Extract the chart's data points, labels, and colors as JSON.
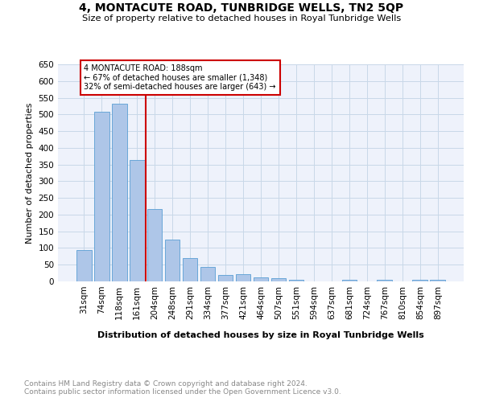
{
  "title": "4, MONTACUTE ROAD, TUNBRIDGE WELLS, TN2 5QP",
  "subtitle": "Size of property relative to detached houses in Royal Tunbridge Wells",
  "xlabel": "Distribution of detached houses by size in Royal Tunbridge Wells",
  "ylabel": "Number of detached properties",
  "footnote1": "Contains HM Land Registry data © Crown copyright and database right 2024.",
  "footnote2": "Contains public sector information licensed under the Open Government Licence v3.0.",
  "annotation_line1": "4 MONTACUTE ROAD: 188sqm",
  "annotation_line2": "← 67% of detached houses are smaller (1,348)",
  "annotation_line3": "32% of semi-detached houses are larger (643) →",
  "vline_x_index": 3.5,
  "categories": [
    "31sqm",
    "74sqm",
    "118sqm",
    "161sqm",
    "204sqm",
    "248sqm",
    "291sqm",
    "334sqm",
    "377sqm",
    "421sqm",
    "464sqm",
    "507sqm",
    "551sqm",
    "594sqm",
    "637sqm",
    "681sqm",
    "724sqm",
    "767sqm",
    "810sqm",
    "854sqm",
    "897sqm"
  ],
  "bar_heights": [
    93,
    507,
    533,
    363,
    216,
    126,
    70,
    43,
    19,
    21,
    12,
    10,
    5,
    0,
    0,
    6,
    0,
    6,
    0,
    5,
    6
  ],
  "bar_color": "#aec6e8",
  "bar_edge_color": "#5a9fd4",
  "vline_color": "#cc0000",
  "box_edge_color": "#cc0000",
  "grid_color": "#c8d8e8",
  "background_color": "#eef2fb",
  "ylim": [
    0,
    650
  ],
  "yticks": [
    0,
    50,
    100,
    150,
    200,
    250,
    300,
    350,
    400,
    450,
    500,
    550,
    600,
    650
  ]
}
